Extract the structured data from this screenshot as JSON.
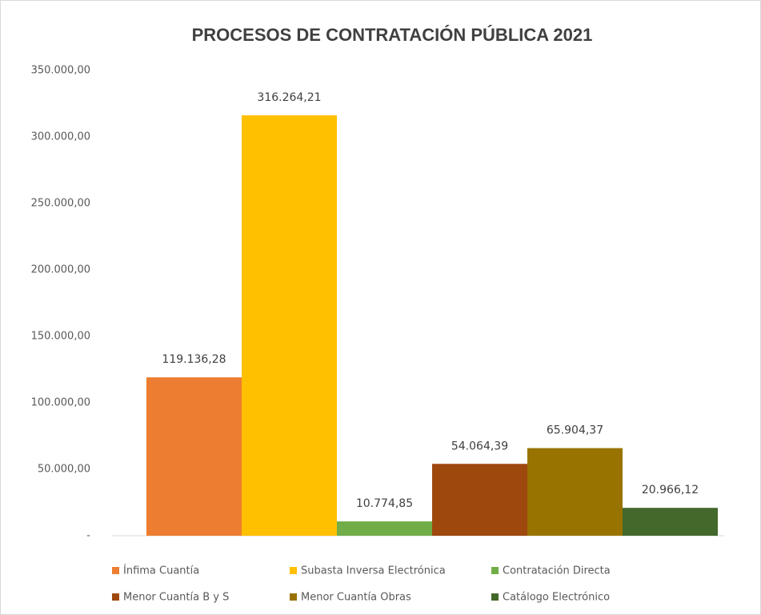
{
  "chart_data": {
    "type": "bar",
    "title": "PROCESOS DE CONTRATACIÓN PÚBLICA 2021",
    "categories": [
      null
    ],
    "series": [
      {
        "name": "Ínfima Cuantía",
        "color": "#ED7D31",
        "values": [
          119136.28
        ],
        "value_labels": [
          "119.136,28"
        ]
      },
      {
        "name": "Subasta Inversa Electrónica",
        "color": "#FFC000",
        "values": [
          316264.21
        ],
        "value_labels": [
          "316.264,21"
        ]
      },
      {
        "name": "Contratación Directa",
        "color": "#70AD47",
        "values": [
          10774.85
        ],
        "value_labels": [
          "10.774,85"
        ]
      },
      {
        "name": "Menor Cuantía B y S",
        "color": "#9E480E",
        "values": [
          54064.39
        ],
        "value_labels": [
          "54.064,39"
        ]
      },
      {
        "name": "Menor Cuantía Obras",
        "color": "#997300",
        "values": [
          65904.37
        ],
        "value_labels": [
          "65.904,37"
        ]
      },
      {
        "name": "Catálogo Electrónico",
        "color": "#43682B",
        "values": [
          20966.12
        ],
        "value_labels": [
          "20.966,12"
        ]
      }
    ],
    "ylim": [
      0,
      350000
    ],
    "yticks": [
      {
        "value": 0,
        "label": "-"
      },
      {
        "value": 50000,
        "label": "50.000,00"
      },
      {
        "value": 100000,
        "label": "100.000,00"
      },
      {
        "value": 150000,
        "label": "150.000,00"
      },
      {
        "value": 200000,
        "label": "200.000,00"
      },
      {
        "value": 250000,
        "label": "250.000,00"
      },
      {
        "value": 300000,
        "label": "300.000,00"
      },
      {
        "value": 350000,
        "label": "350.000,00"
      }
    ],
    "grid": false,
    "legend": "bottom"
  }
}
